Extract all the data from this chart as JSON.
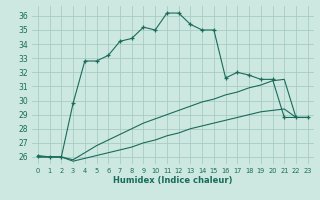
{
  "xlabel": "Humidex (Indice chaleur)",
  "bg_color": "#cce8e0",
  "grid_color": "#a8ccc5",
  "line_color": "#1a6b5a",
  "xlim": [
    -0.5,
    23.5
  ],
  "ylim": [
    25.5,
    36.7
  ],
  "xticks": [
    0,
    1,
    2,
    3,
    4,
    5,
    6,
    7,
    8,
    9,
    10,
    11,
    12,
    13,
    14,
    15,
    16,
    17,
    18,
    19,
    20,
    21,
    22,
    23
  ],
  "yticks": [
    26,
    27,
    28,
    29,
    30,
    31,
    32,
    33,
    34,
    35,
    36
  ],
  "line1_x": [
    0,
    1,
    2,
    3,
    4,
    5,
    6,
    7,
    8,
    9,
    10,
    11,
    12,
    13,
    14,
    15,
    16,
    17,
    18,
    19,
    20,
    21,
    22,
    23
  ],
  "line1_y": [
    26.1,
    26.0,
    26.0,
    29.8,
    32.8,
    32.8,
    33.2,
    34.2,
    34.4,
    35.2,
    35.0,
    36.2,
    36.2,
    35.4,
    35.0,
    35.0,
    31.6,
    32.0,
    31.8,
    31.5,
    31.5,
    28.8,
    28.8,
    28.8
  ],
  "line2_x": [
    0,
    1,
    2,
    3,
    4,
    5,
    6,
    7,
    8,
    9,
    10,
    11,
    12,
    13,
    14,
    15,
    16,
    17,
    18,
    19,
    20,
    21,
    22,
    23
  ],
  "line2_y": [
    26.0,
    26.0,
    26.0,
    25.8,
    26.3,
    26.8,
    27.2,
    27.6,
    28.0,
    28.4,
    28.7,
    29.0,
    29.3,
    29.6,
    29.9,
    30.1,
    30.4,
    30.6,
    30.9,
    31.1,
    31.4,
    31.5,
    28.8,
    28.8
  ],
  "line3_x": [
    0,
    1,
    2,
    3,
    4,
    5,
    6,
    7,
    8,
    9,
    10,
    11,
    12,
    13,
    14,
    15,
    16,
    17,
    18,
    19,
    20,
    21,
    22,
    23
  ],
  "line3_y": [
    26.0,
    26.0,
    26.0,
    25.7,
    25.9,
    26.1,
    26.3,
    26.5,
    26.7,
    27.0,
    27.2,
    27.5,
    27.7,
    28.0,
    28.2,
    28.4,
    28.6,
    28.8,
    29.0,
    29.2,
    29.3,
    29.4,
    28.8,
    28.8
  ]
}
